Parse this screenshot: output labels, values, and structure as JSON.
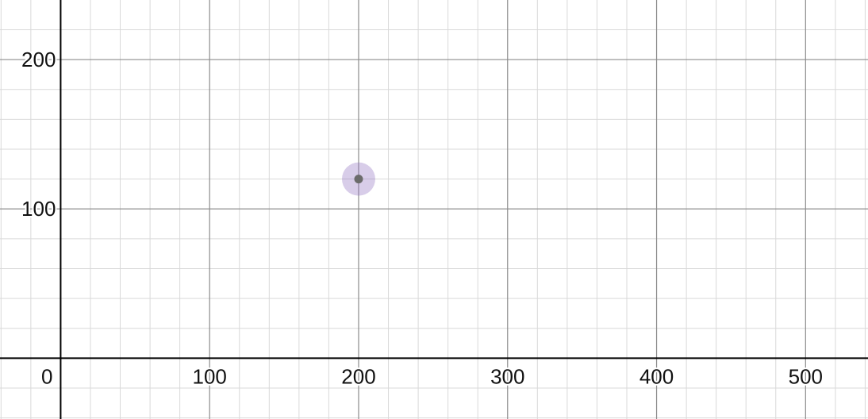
{
  "chart_data": {
    "type": "scatter",
    "title": "",
    "xlabel": "",
    "ylabel": "",
    "xlim": [
      -40.7,
      541.9
    ],
    "ylim": [
      -40.7,
      239.9
    ],
    "grid": true,
    "x_ticks": [
      0,
      100,
      200,
      300,
      400,
      500
    ],
    "x_tick_labels": [
      "0",
      "100",
      "200",
      "300",
      "400",
      "500"
    ],
    "y_ticks": [
      100,
      200
    ],
    "y_tick_labels": [
      "100",
      "200"
    ],
    "series": [
      {
        "x": [
          200
        ],
        "y": [
          120
        ],
        "color": "#6b6b6b",
        "highlight_color": "#8f6fbf"
      }
    ]
  }
}
